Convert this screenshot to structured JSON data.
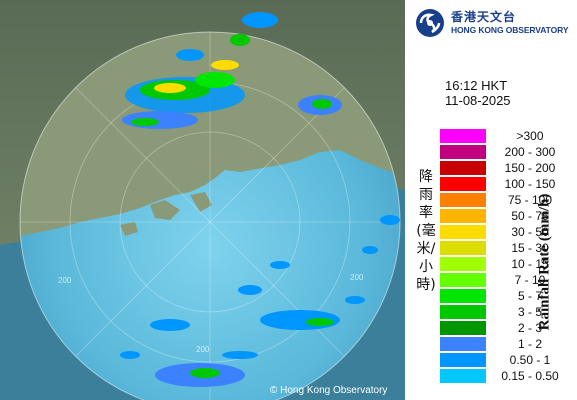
{
  "header": {
    "org_cn": "香港天文台",
    "org_en": "HONG KONG OBSERVATORY",
    "logo_icon": "hko-swirl-logo-icon"
  },
  "timestamp": {
    "time": "16:12 HKT",
    "date": "11-08-2025"
  },
  "legend": {
    "title_cn": "降雨率(毫米/小時)",
    "title_en": "Rainfall Rate (mm/h)",
    "items": [
      {
        "label": ">300",
        "color": "#ff00ff"
      },
      {
        "label": "200 - 300",
        "color": "#c0007f"
      },
      {
        "label": "150 - 200",
        "color": "#c80000"
      },
      {
        "label": "100 - 150",
        "color": "#ff0000"
      },
      {
        "label": "75 - 100",
        "color": "#ff8000"
      },
      {
        "label": "50 - 75",
        "color": "#ffb400"
      },
      {
        "label": "30 - 50",
        "color": "#ffdc00"
      },
      {
        "label": "15 - 30",
        "color": "#dcdc00"
      },
      {
        "label": "10 - 15",
        "color": "#a0ff00"
      },
      {
        "label": "7 - 10",
        "color": "#64ff00"
      },
      {
        "label": "5 - 7",
        "color": "#00e600"
      },
      {
        "label": "3 - 5",
        "color": "#00c800"
      },
      {
        "label": "2 - 3",
        "color": "#009600"
      },
      {
        "label": "1 - 2",
        "color": "#3c82ff"
      },
      {
        "label": "0.50 - 1",
        "color": "#0096ff"
      },
      {
        "label": "0.15 - 0.50",
        "color": "#00c8ff"
      }
    ]
  },
  "map": {
    "range_labels": [
      "200",
      "200",
      "200"
    ],
    "copyright": "© Hong Kong Observatory"
  }
}
